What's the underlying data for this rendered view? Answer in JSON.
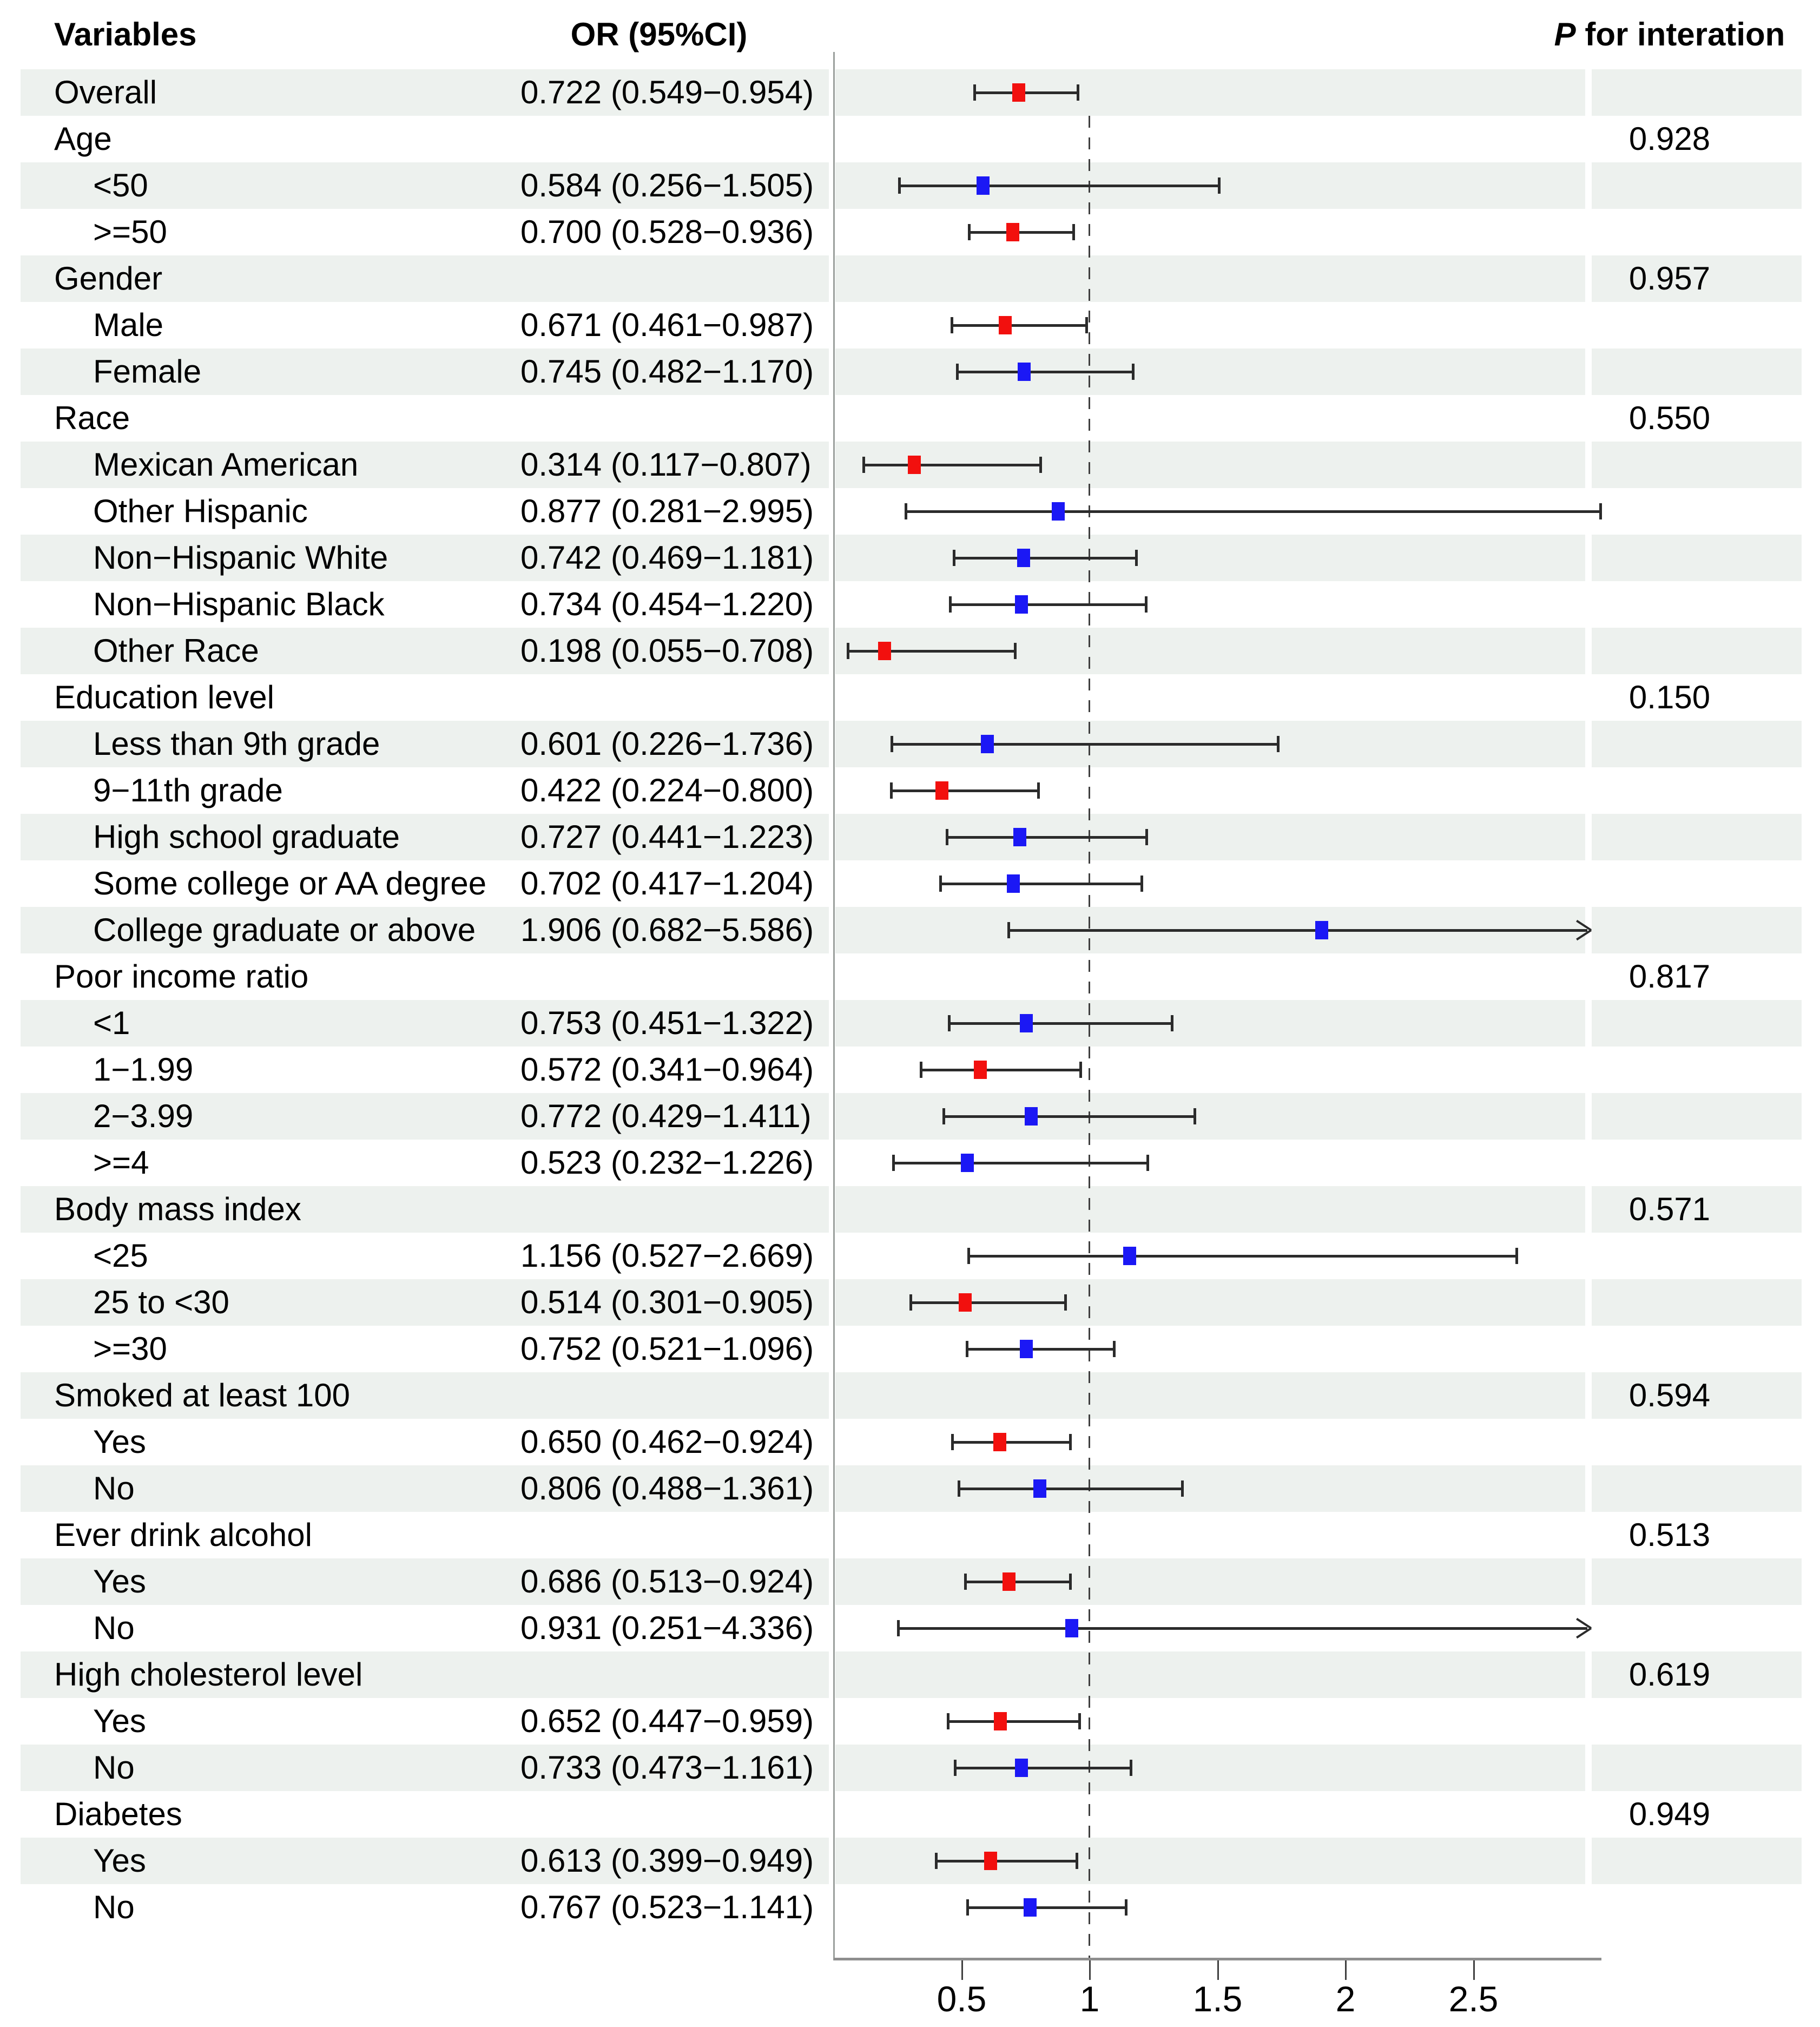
{
  "header": {
    "variables": "Variables",
    "or": "OR (95%CI)",
    "p_italic": "P",
    "p_rest": " for interation"
  },
  "colors": {
    "row_shade": "#edf1ee",
    "marker_red": "#f2100e",
    "marker_blue": "#1b18f5",
    "ci_line": "#2b2b2b",
    "axis_line": "#8e8e8e",
    "reference_dash": "#3f3f3f"
  },
  "chart_data": {
    "type": "forest",
    "xlabel": "",
    "ylabel": "",
    "xlim": [
      0,
      3
    ],
    "xticks": [
      0.5,
      1,
      1.5,
      2,
      2.5
    ],
    "xtick_labels": [
      "0.5",
      "1",
      "1.5",
      "2",
      "2.5"
    ],
    "reference_line": 1,
    "grid": false,
    "legend": "none",
    "rows": [
      {
        "label": "Overall",
        "indent": false,
        "or": "0.722 (0.549−0.954)",
        "est": 0.722,
        "lo": 0.549,
        "hi": 0.954,
        "color": "red",
        "p": "",
        "arrow": false
      },
      {
        "label": "Age",
        "indent": false,
        "or": "",
        "est": null,
        "lo": null,
        "hi": null,
        "color": null,
        "p": "0.928",
        "arrow": false
      },
      {
        "label": "<50",
        "indent": true,
        "or": "0.584 (0.256−1.505)",
        "est": 0.584,
        "lo": 0.256,
        "hi": 1.505,
        "color": "blue",
        "p": "",
        "arrow": false
      },
      {
        "label": ">=50",
        "indent": true,
        "or": "0.700 (0.528−0.936)",
        "est": 0.7,
        "lo": 0.528,
        "hi": 0.936,
        "color": "red",
        "p": "",
        "arrow": false
      },
      {
        "label": "Gender",
        "indent": false,
        "or": "",
        "est": null,
        "lo": null,
        "hi": null,
        "color": null,
        "p": "0.957",
        "arrow": false
      },
      {
        "label": "Male",
        "indent": true,
        "or": "0.671 (0.461−0.987)",
        "est": 0.671,
        "lo": 0.461,
        "hi": 0.987,
        "color": "red",
        "p": "",
        "arrow": false
      },
      {
        "label": "Female",
        "indent": true,
        "or": "0.745 (0.482−1.170)",
        "est": 0.745,
        "lo": 0.482,
        "hi": 1.17,
        "color": "blue",
        "p": "",
        "arrow": false
      },
      {
        "label": "Race",
        "indent": false,
        "or": "",
        "est": null,
        "lo": null,
        "hi": null,
        "color": null,
        "p": "0.550",
        "arrow": false
      },
      {
        "label": "Mexican American",
        "indent": true,
        "or": "0.314 (0.117−0.807)",
        "est": 0.314,
        "lo": 0.117,
        "hi": 0.807,
        "color": "red",
        "p": "",
        "arrow": false
      },
      {
        "label": "Other Hispanic",
        "indent": true,
        "or": "0.877 (0.281−2.995)",
        "est": 0.877,
        "lo": 0.281,
        "hi": 2.995,
        "color": "blue",
        "p": "",
        "arrow": false
      },
      {
        "label": "Non−Hispanic White",
        "indent": true,
        "or": "0.742 (0.469−1.181)",
        "est": 0.742,
        "lo": 0.469,
        "hi": 1.181,
        "color": "blue",
        "p": "",
        "arrow": false
      },
      {
        "label": "Non−Hispanic Black",
        "indent": true,
        "or": "0.734 (0.454−1.220)",
        "est": 0.734,
        "lo": 0.454,
        "hi": 1.22,
        "color": "blue",
        "p": "",
        "arrow": false
      },
      {
        "label": "Other Race",
        "indent": true,
        "or": "0.198 (0.055−0.708)",
        "est": 0.198,
        "lo": 0.055,
        "hi": 0.708,
        "color": "red",
        "p": "",
        "arrow": false
      },
      {
        "label": "Education level",
        "indent": false,
        "or": "",
        "est": null,
        "lo": null,
        "hi": null,
        "color": null,
        "p": "0.150",
        "arrow": false
      },
      {
        "label": "Less than 9th grade",
        "indent": true,
        "or": "0.601 (0.226−1.736)",
        "est": 0.601,
        "lo": 0.226,
        "hi": 1.736,
        "color": "blue",
        "p": "",
        "arrow": false
      },
      {
        "label": "9−11th grade",
        "indent": true,
        "or": "0.422 (0.224−0.800)",
        "est": 0.422,
        "lo": 0.224,
        "hi": 0.8,
        "color": "red",
        "p": "",
        "arrow": false
      },
      {
        "label": "High school graduate",
        "indent": true,
        "or": "0.727 (0.441−1.223)",
        "est": 0.727,
        "lo": 0.441,
        "hi": 1.223,
        "color": "blue",
        "p": "",
        "arrow": false
      },
      {
        "label": "Some college or AA degree",
        "indent": true,
        "or": "0.702 (0.417−1.204)",
        "est": 0.702,
        "lo": 0.417,
        "hi": 1.204,
        "color": "blue",
        "p": "",
        "arrow": false
      },
      {
        "label": "College graduate or above",
        "indent": true,
        "or": "1.906 (0.682−5.586)",
        "est": 1.906,
        "lo": 0.682,
        "hi": 5.586,
        "color": "blue",
        "p": "",
        "arrow": true
      },
      {
        "label": "Poor income ratio",
        "indent": false,
        "or": "",
        "est": null,
        "lo": null,
        "hi": null,
        "color": null,
        "p": "0.817",
        "arrow": false
      },
      {
        "label": "<1",
        "indent": true,
        "or": "0.753 (0.451−1.322)",
        "est": 0.753,
        "lo": 0.451,
        "hi": 1.322,
        "color": "blue",
        "p": "",
        "arrow": false
      },
      {
        "label": "1−1.99",
        "indent": true,
        "or": "0.572 (0.341−0.964)",
        "est": 0.572,
        "lo": 0.341,
        "hi": 0.964,
        "color": "red",
        "p": "",
        "arrow": false
      },
      {
        "label": "2−3.99",
        "indent": true,
        "or": "0.772 (0.429−1.411)",
        "est": 0.772,
        "lo": 0.429,
        "hi": 1.411,
        "color": "blue",
        "p": "",
        "arrow": false
      },
      {
        "label": ">=4",
        "indent": true,
        "or": "0.523 (0.232−1.226)",
        "est": 0.523,
        "lo": 0.232,
        "hi": 1.226,
        "color": "blue",
        "p": "",
        "arrow": false
      },
      {
        "label": "Body mass index",
        "indent": false,
        "or": "",
        "est": null,
        "lo": null,
        "hi": null,
        "color": null,
        "p": "0.571",
        "arrow": false
      },
      {
        "label": "<25",
        "indent": true,
        "or": "1.156 (0.527−2.669)",
        "est": 1.156,
        "lo": 0.527,
        "hi": 2.669,
        "color": "blue",
        "p": "",
        "arrow": false
      },
      {
        "label": "25 to <30",
        "indent": true,
        "or": "0.514 (0.301−0.905)",
        "est": 0.514,
        "lo": 0.301,
        "hi": 0.905,
        "color": "red",
        "p": "",
        "arrow": false
      },
      {
        "label": ">=30",
        "indent": true,
        "or": "0.752 (0.521−1.096)",
        "est": 0.752,
        "lo": 0.521,
        "hi": 1.096,
        "color": "blue",
        "p": "",
        "arrow": false
      },
      {
        "label": "Smoked at least 100",
        "indent": false,
        "or": "",
        "est": null,
        "lo": null,
        "hi": null,
        "color": null,
        "p": "0.594",
        "arrow": false
      },
      {
        "label": "Yes",
        "indent": true,
        "or": "0.650 (0.462−0.924)",
        "est": 0.65,
        "lo": 0.462,
        "hi": 0.924,
        "color": "red",
        "p": "",
        "arrow": false
      },
      {
        "label": "No",
        "indent": true,
        "or": "0.806 (0.488−1.361)",
        "est": 0.806,
        "lo": 0.488,
        "hi": 1.361,
        "color": "blue",
        "p": "",
        "arrow": false
      },
      {
        "label": "Ever drink alcohol",
        "indent": false,
        "or": "",
        "est": null,
        "lo": null,
        "hi": null,
        "color": null,
        "p": "0.513",
        "arrow": false
      },
      {
        "label": "Yes",
        "indent": true,
        "or": "0.686 (0.513−0.924)",
        "est": 0.686,
        "lo": 0.513,
        "hi": 0.924,
        "color": "red",
        "p": "",
        "arrow": false
      },
      {
        "label": "No",
        "indent": true,
        "or": "0.931 (0.251−4.336)",
        "est": 0.931,
        "lo": 0.251,
        "hi": 4.336,
        "color": "blue",
        "p": "",
        "arrow": true
      },
      {
        "label": "High cholesterol level",
        "indent": false,
        "or": "",
        "est": null,
        "lo": null,
        "hi": null,
        "color": null,
        "p": "0.619",
        "arrow": false
      },
      {
        "label": "Yes",
        "indent": true,
        "or": "0.652 (0.447−0.959)",
        "est": 0.652,
        "lo": 0.447,
        "hi": 0.959,
        "color": "red",
        "p": "",
        "arrow": false
      },
      {
        "label": "No",
        "indent": true,
        "or": "0.733 (0.473−1.161)",
        "est": 0.733,
        "lo": 0.473,
        "hi": 1.161,
        "color": "blue",
        "p": "",
        "arrow": false
      },
      {
        "label": "Diabetes",
        "indent": false,
        "or": "",
        "est": null,
        "lo": null,
        "hi": null,
        "color": null,
        "p": "0.949",
        "arrow": false
      },
      {
        "label": "Yes",
        "indent": true,
        "or": "0.613 (0.399−0.949)",
        "est": 0.613,
        "lo": 0.399,
        "hi": 0.949,
        "color": "red",
        "p": "",
        "arrow": false
      },
      {
        "label": "No",
        "indent": true,
        "or": "0.767 (0.523−1.141)",
        "est": 0.767,
        "lo": 0.523,
        "hi": 1.141,
        "color": "blue",
        "p": "",
        "arrow": false
      }
    ]
  }
}
